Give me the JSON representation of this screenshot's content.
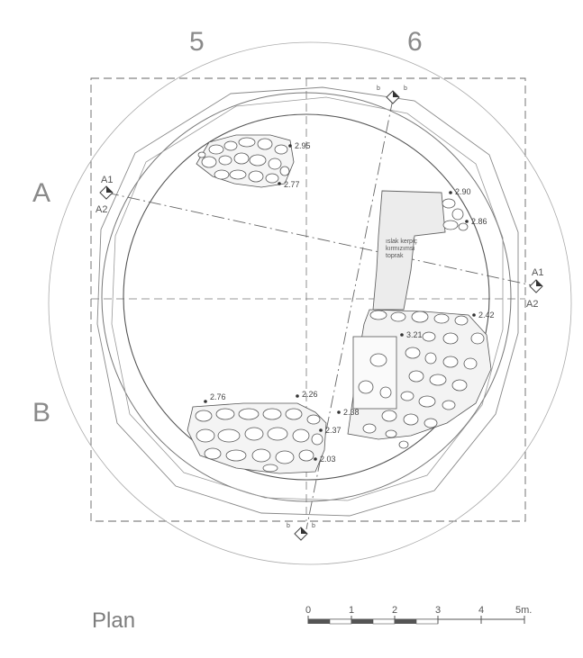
{
  "grid_labels": {
    "col_left": "5",
    "col_right": "6",
    "row_top": "A",
    "row_bottom": "B"
  },
  "title": "Plan",
  "section_markers": {
    "left": {
      "top": "A1",
      "bottom": "A2"
    },
    "right": {
      "top": "A1",
      "bottom": "A2"
    }
  },
  "elevations": [
    "2.95",
    "2.77",
    "2.90",
    "2.86",
    "2.42",
    "3.21",
    "2.76",
    "2.26",
    "2.38",
    "2.37",
    "2.03"
  ],
  "scale_bar": {
    "ticks": [
      "0",
      "1",
      "2",
      "3",
      "4",
      "5m."
    ]
  }
}
